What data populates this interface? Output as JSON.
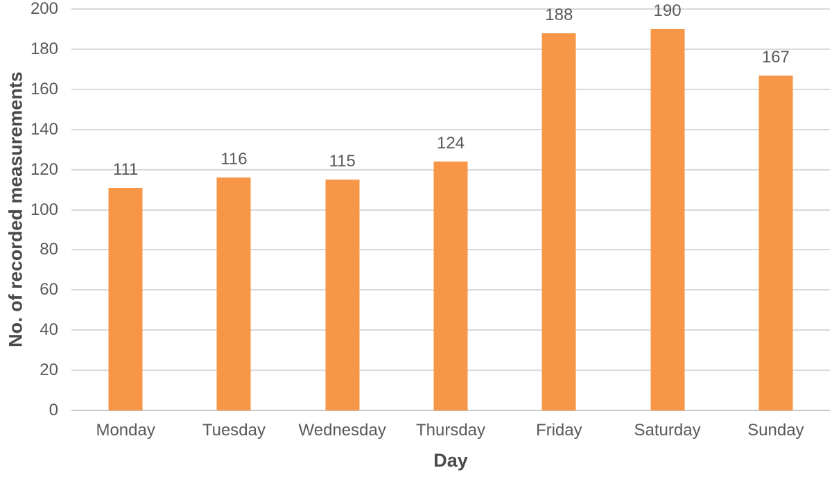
{
  "chart_data": {
    "type": "bar",
    "title": "",
    "categories": [
      "Monday",
      "Tuesday",
      "Wednesday",
      "Thursday",
      "Friday",
      "Saturday",
      "Sunday"
    ],
    "values": [
      111,
      116,
      115,
      124,
      188,
      190,
      167
    ],
    "xlabel": "Day",
    "ylabel": "No. of recorded measurements",
    "ylim": [
      0,
      200
    ],
    "ytick_step": 20,
    "yticks": [
      0,
      20,
      40,
      60,
      80,
      100,
      120,
      140,
      160,
      180,
      200
    ],
    "grid": true,
    "legend": false,
    "data_labels": true,
    "colors": {
      "bar": "#f79646",
      "gridline": "#d9d9d9",
      "axis_line": "#c6c6c6",
      "tick_text": "#595959",
      "title_text": "#4a4a4a",
      "background": "#ffffff"
    }
  }
}
